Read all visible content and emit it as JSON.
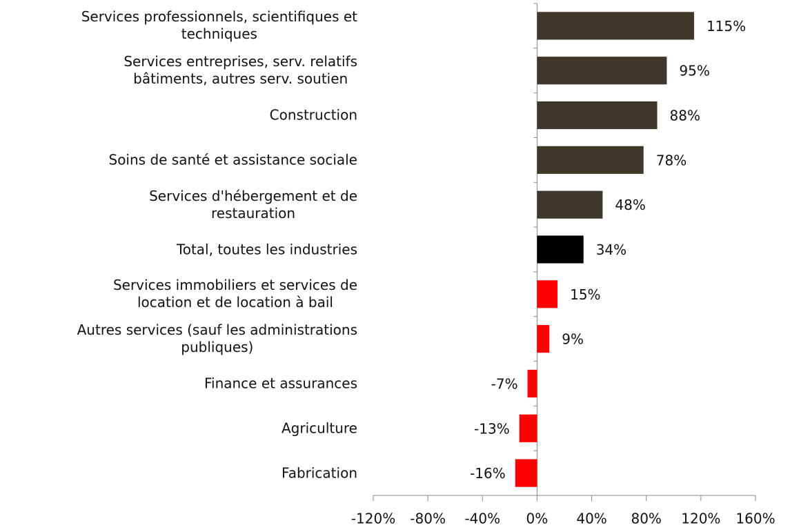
{
  "chart_data": {
    "type": "hbar",
    "categories": [
      "Services professionnels, scientifiques et\ntechniques",
      "Services entreprises, serv. relatifs\nbâtiments, autres serv. soutien",
      "Construction",
      "Soins de santé et assistance sociale",
      "Services d'hébergement et de\nrestauration",
      "Total, toutes les industries",
      "Services immobiliers et services de\nlocation et de location à bail",
      "Autres services (sauf les administrations\npubliques)",
      "Finance et assurances",
      "Agriculture",
      "Fabrication"
    ],
    "values": [
      115,
      95,
      88,
      78,
      48,
      34,
      15,
      9,
      -7,
      -13,
      -16
    ],
    "value_labels": [
      "115%",
      "95%",
      "88%",
      "78%",
      "48%",
      "34%",
      "15%",
      "9%",
      "-7%",
      "-13%",
      "-16%"
    ],
    "colors": [
      "#403729",
      "#403729",
      "#403729",
      "#403729",
      "#403729",
      "#000000",
      "#ff0000",
      "#ff0000",
      "#ff0000",
      "#ff0000",
      "#ff0000"
    ],
    "xlim": [
      -120,
      160
    ],
    "xticks": [
      {
        "value": -120,
        "label": "-120%"
      },
      {
        "value": -80,
        "label": "-80%"
      },
      {
        "value": -40,
        "label": "-40%"
      },
      {
        "value": 0,
        "label": "0%"
      },
      {
        "value": 40,
        "label": "40%"
      },
      {
        "value": 80,
        "label": "80%"
      },
      {
        "value": 120,
        "label": "120%"
      },
      {
        "value": 160,
        "label": "160%"
      }
    ]
  }
}
